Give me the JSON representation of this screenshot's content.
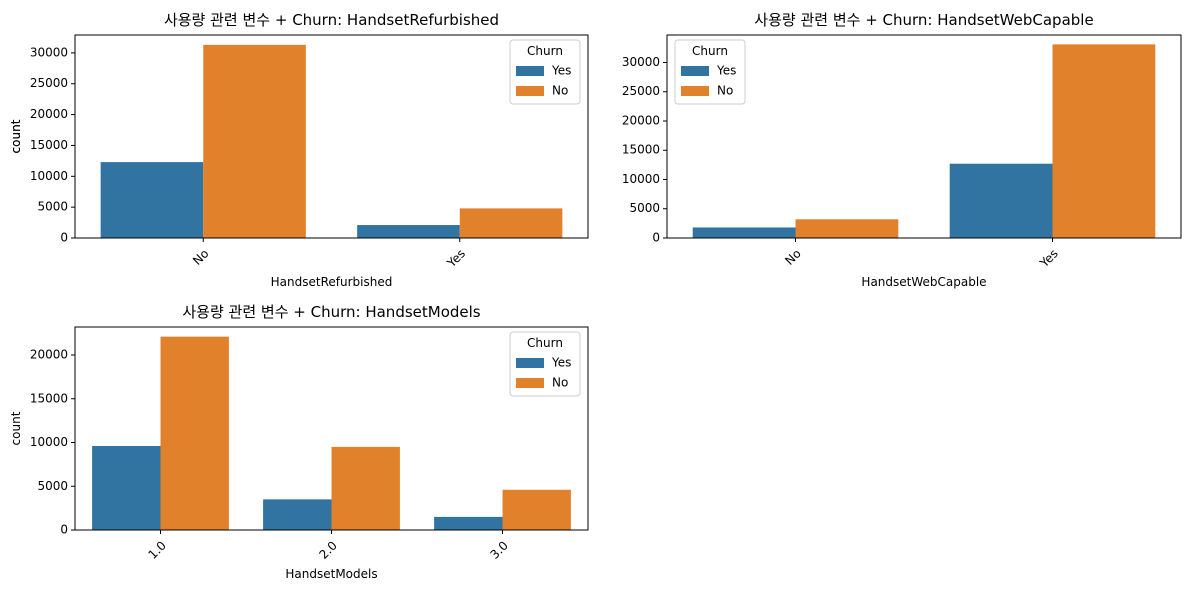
{
  "colors": {
    "Yes": "#3274a1",
    "No": "#e1812c"
  },
  "chart_data": [
    {
      "type": "bar",
      "title": "사용량 관련 변수 + Churn: HandsetRefurbished",
      "xlabel": "HandsetRefurbished",
      "ylabel": "count",
      "categories": [
        "No",
        "Yes"
      ],
      "series": [
        {
          "name": "Yes",
          "values": [
            12300,
            2100
          ]
        },
        {
          "name": "No",
          "values": [
            31300,
            4800
          ]
        }
      ],
      "ylim": [
        0,
        32900
      ],
      "yticks": [
        0,
        5000,
        10000,
        15000,
        20000,
        25000,
        30000
      ],
      "legend_title": "Churn",
      "legend_position": "top-right",
      "grid": false
    },
    {
      "type": "bar",
      "title": "사용량 관련 변수 + Churn: HandsetWebCapable",
      "xlabel": "HandsetWebCapable",
      "ylabel": "count",
      "categories": [
        "No",
        "Yes"
      ],
      "series": [
        {
          "name": "Yes",
          "values": [
            1800,
            12700
          ]
        },
        {
          "name": "No",
          "values": [
            3200,
            33100
          ]
        }
      ],
      "ylim": [
        0,
        34700
      ],
      "yticks": [
        0,
        5000,
        10000,
        15000,
        20000,
        25000,
        30000
      ],
      "legend_title": "Churn",
      "legend_position": "top-left",
      "grid": false
    },
    {
      "type": "bar",
      "title": "사용량 관련 변수 + Churn: HandsetModels",
      "xlabel": "HandsetModels",
      "ylabel": "count",
      "categories": [
        "1.0",
        "2.0",
        "3.0"
      ],
      "series": [
        {
          "name": "Yes",
          "values": [
            9600,
            3500,
            1500
          ]
        },
        {
          "name": "No",
          "values": [
            22100,
            9500,
            4600
          ]
        }
      ],
      "ylim": [
        0,
        23200
      ],
      "yticks": [
        0,
        5000,
        10000,
        15000,
        20000
      ],
      "legend_title": "Churn",
      "legend_position": "top-right",
      "grid": false
    }
  ]
}
